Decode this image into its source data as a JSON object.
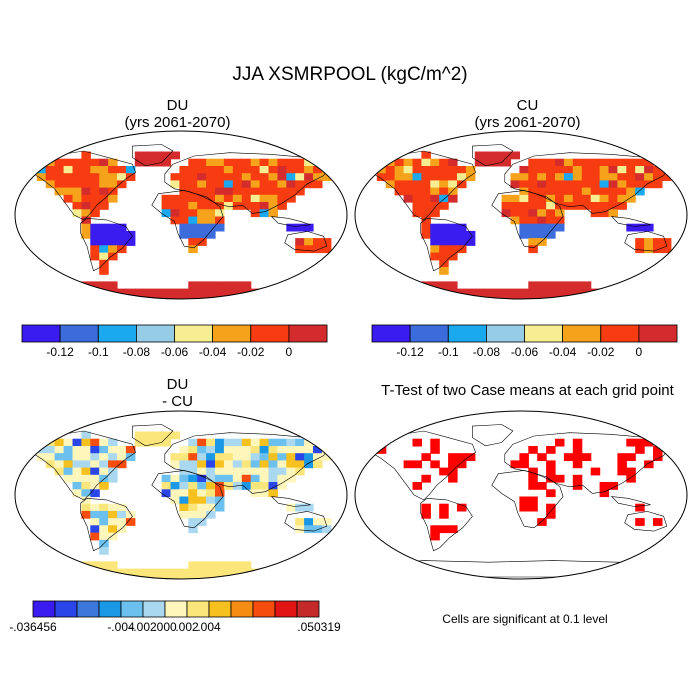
{
  "title": "JJA XSMRPOOL (kgC/m^2)",
  "panels": [
    {
      "id": "du",
      "title_line1": "DU",
      "title_line2": "(yrs 2061-2070)",
      "scheme": "abs"
    },
    {
      "id": "cu",
      "title_line1": "CU",
      "title_line2": "(yrs 2061-2070)",
      "scheme": "abs"
    },
    {
      "id": "diff",
      "title_line1": "DU",
      "title_line2": "- CU",
      "scheme": "diff"
    },
    {
      "id": "ttest",
      "title_line1": "T-Test of two Case means at each grid point",
      "scheme": "sig"
    }
  ],
  "colorbars": {
    "abs": {
      "colors": [
        "#3a1cf0",
        "#3c6cdc",
        "#1aa8ee",
        "#96cce6",
        "#f6ee90",
        "#f6a21a",
        "#f63c10",
        "#d42c2c"
      ],
      "labels": [
        "-0.12",
        "-0.1",
        "-0.08",
        "-0.06",
        "-0.04",
        "-0.02",
        "0"
      ]
    },
    "diff": {
      "colors": [
        "#3a1cf0",
        "#2a46e8",
        "#3c78dc",
        "#1a98e6",
        "#6cc0ee",
        "#aad8f0",
        "#fff6bc",
        "#fae67a",
        "#f6c01e",
        "#f68c12",
        "#f64c0e",
        "#e21414",
        "#c42a2a"
      ],
      "labels": [
        "-.036456",
        "-.004",
        "-.002",
        ".000",
        ".002",
        ".004",
        ".050319"
      ]
    }
  },
  "significance_note": "Cells are significant at 0.1 level",
  "chart_data": [
    {
      "type": "heatmap",
      "title": "DU (yrs 2061-2070)",
      "variable": "JJA XSMRPOOL",
      "units": "kgC/m^2",
      "color_levels": [
        -0.12,
        -0.1,
        -0.08,
        -0.06,
        -0.04,
        -0.02,
        0
      ]
    },
    {
      "type": "heatmap",
      "title": "CU (yrs 2061-2070)",
      "variable": "JJA XSMRPOOL",
      "units": "kgC/m^2",
      "color_levels": [
        -0.12,
        -0.1,
        -0.08,
        -0.06,
        -0.04,
        -0.02,
        0
      ]
    },
    {
      "type": "heatmap",
      "title": "DU - CU",
      "variable": "JJA XSMRPOOL",
      "units": "kgC/m^2",
      "range": [
        -0.036456,
        0.050319
      ],
      "color_levels": [
        -0.004,
        -0.002,
        0.0,
        0.002,
        0.004
      ]
    },
    {
      "type": "heatmap",
      "title": "T-Test of two Case means at each grid point",
      "significance_level": 0.1
    }
  ]
}
